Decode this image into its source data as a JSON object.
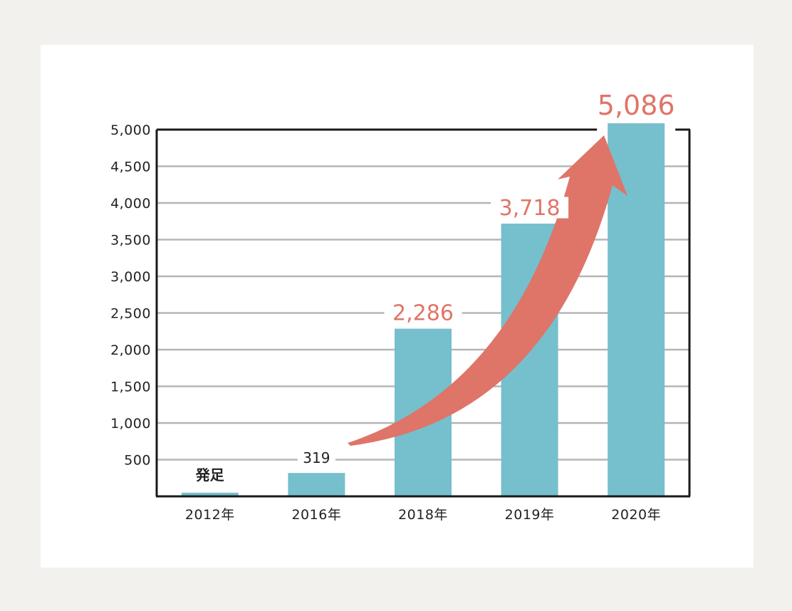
{
  "chart_data": {
    "type": "bar",
    "categories": [
      "2012年",
      "2016年",
      "2018年",
      "2019年",
      "2020年"
    ],
    "values": [
      50,
      319,
      2286,
      3718,
      5086
    ],
    "data_labels": [
      "発足",
      "319",
      "2,286",
      "3,718",
      "5,086"
    ],
    "label_colors": [
      "#222222",
      "#222222",
      "#e07468",
      "#e07468",
      "#e07468"
    ],
    "ylim": [
      0,
      5000
    ],
    "yticks": [
      500,
      1000,
      1500,
      2000,
      2500,
      3000,
      3500,
      4000,
      4500,
      5000
    ],
    "ytick_labels": [
      "500",
      "1,000",
      "1,500",
      "2,000",
      "2,500",
      "3,000",
      "3,500",
      "4,000",
      "4,500",
      "5,000"
    ],
    "grid": true,
    "bar_color": "#76bfcc",
    "arrow_color": "#df7468",
    "annotation": "upward-trend-arrow"
  }
}
